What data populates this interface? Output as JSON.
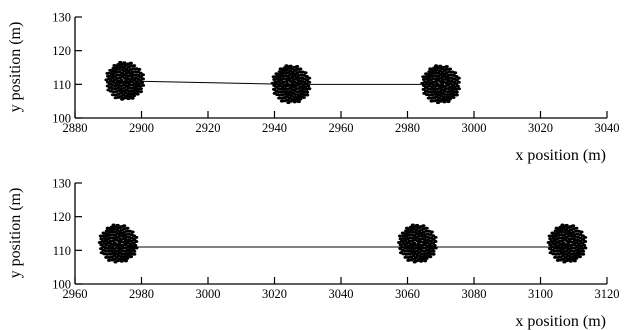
{
  "chart_data": [
    {
      "type": "scatter",
      "xlabel": "x position (m)",
      "ylabel": "y position (m)",
      "xlim": [
        2880,
        3040
      ],
      "ylim": [
        100,
        130
      ],
      "xticks": [
        "2880",
        "2900",
        "2920",
        "2940",
        "2960",
        "2980",
        "3000",
        "3020",
        "3040"
      ],
      "yticks": [
        "100",
        "110",
        "120",
        "130"
      ],
      "grid": false,
      "legend": "none",
      "clusters": [
        {
          "center": [
            2895,
            111
          ],
          "radius": 5.8,
          "points": 140
        },
        {
          "center": [
            2945,
            110
          ],
          "radius": 5.8,
          "points": 140
        },
        {
          "center": [
            2990,
            110
          ],
          "radius": 5.8,
          "points": 140
        }
      ],
      "trajectory": [
        [
          2895,
          111
        ],
        [
          2945,
          110
        ],
        [
          2990,
          110
        ]
      ]
    },
    {
      "type": "scatter",
      "xlabel": "x position (m)",
      "ylabel": "y position (m)",
      "xlim": [
        2960,
        3120
      ],
      "ylim": [
        100,
        130
      ],
      "xticks": [
        "2960",
        "2980",
        "3000",
        "3020",
        "3040",
        "3060",
        "3080",
        "3100",
        "3120"
      ],
      "yticks": [
        "100",
        "110",
        "120",
        "130"
      ],
      "grid": false,
      "legend": "none",
      "clusters": [
        {
          "center": [
            2973,
            112
          ],
          "radius": 5.8,
          "points": 140
        },
        {
          "center": [
            3063,
            112
          ],
          "radius": 5.8,
          "points": 140
        },
        {
          "center": [
            3108,
            112
          ],
          "radius": 5.8,
          "points": 140
        }
      ],
      "trajectory": [
        [
          2973,
          111
        ],
        [
          3063,
          111
        ],
        [
          3108,
          111
        ]
      ]
    }
  ],
  "colors": {
    "axis": "#000000",
    "points": "#000000",
    "background": "#ffffff"
  }
}
